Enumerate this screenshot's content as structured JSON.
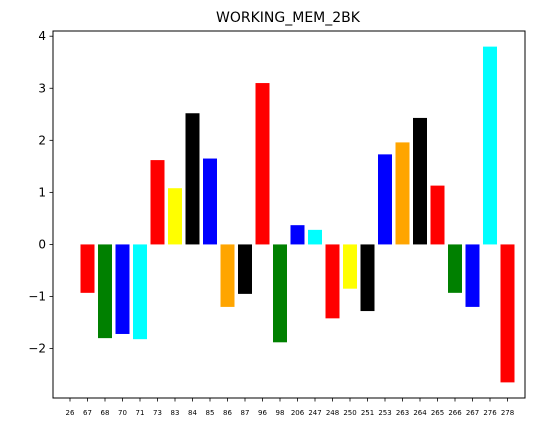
{
  "chart_data": {
    "type": "bar",
    "title": "WORKING_MEM_2BK",
    "xlabel": "",
    "ylabel": "",
    "ylim": [
      -2.95,
      4.1
    ],
    "yticks": [
      -2,
      -1,
      0,
      1,
      2,
      3,
      4
    ],
    "ytick_labels": [
      "−2",
      "−1",
      "0",
      "1",
      "2",
      "3",
      "4"
    ],
    "grid": false,
    "legend": "none",
    "categories": [
      "26",
      "67",
      "68",
      "70",
      "71",
      "73",
      "83",
      "84",
      "85",
      "86",
      "87",
      "96",
      "98",
      "206",
      "247",
      "248",
      "250",
      "251",
      "253",
      "263",
      "264",
      "265",
      "266",
      "267",
      "276",
      "278"
    ],
    "values": [
      0,
      -0.93,
      -1.8,
      -1.72,
      -1.82,
      1.62,
      1.08,
      2.52,
      1.65,
      -1.2,
      -0.95,
      3.1,
      -1.88,
      0.37,
      0.28,
      -1.42,
      -0.85,
      -1.28,
      1.73,
      1.96,
      2.43,
      1.13,
      -0.93,
      -1.2,
      3.8,
      -2.65
    ],
    "colors": [
      "#ff0000",
      "#ff0000",
      "#008000",
      "#0000ff",
      "#00ffff",
      "#ff0000",
      "#ffff00",
      "#000000",
      "#0000ff",
      "#ffa500",
      "#000000",
      "#ff0000",
      "#008000",
      "#0000ff",
      "#00ffff",
      "#ff0000",
      "#ffff00",
      "#000000",
      "#0000ff",
      "#ffa500",
      "#000000",
      "#ff0000",
      "#008000",
      "#0000ff",
      "#00ffff",
      "#ff0000"
    ]
  }
}
